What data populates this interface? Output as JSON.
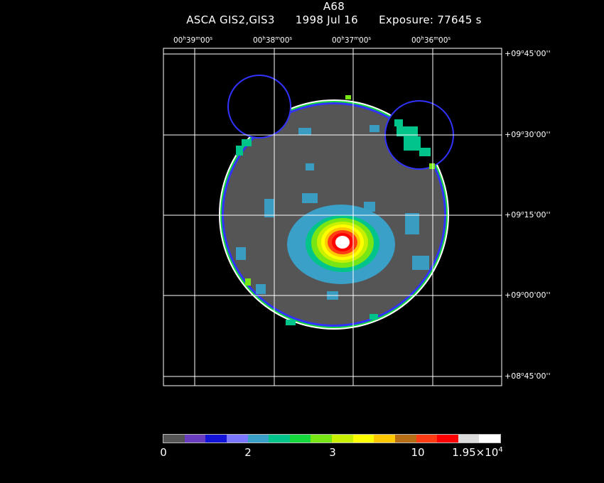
{
  "header": {
    "title": "A68",
    "instrument": "ASCA GIS2,GIS3",
    "date": "1998 Jul 16",
    "exposure": "Exposure: 77645 s"
  },
  "ra_axis": [
    {
      "h": "00",
      "m": "39",
      "s": "00"
    },
    {
      "h": "00",
      "m": "38",
      "s": "00"
    },
    {
      "h": "00",
      "m": "37",
      "s": "00"
    },
    {
      "h": "00",
      "m": "36",
      "s": "00"
    }
  ],
  "dec_axis": [
    {
      "d": "+09",
      "m": "45",
      "s": "00"
    },
    {
      "d": "+09",
      "m": "30",
      "s": "00"
    },
    {
      "d": "+09",
      "m": "15",
      "s": "00"
    },
    {
      "d": "+09",
      "m": "00",
      "s": "00"
    },
    {
      "d": "+08",
      "m": "45",
      "s": "00"
    }
  ],
  "colorbar": {
    "colors": [
      "#555555",
      "#6a3cbf",
      "#1414d8",
      "#7b78ff",
      "#3aa0c8",
      "#00c48a",
      "#14d83c",
      "#78e614",
      "#c8f000",
      "#ffff00",
      "#ffc800",
      "#b86e14",
      "#ff3c14",
      "#ff0000",
      "#dcdcdc",
      "#ffffff"
    ],
    "ticks": [
      {
        "label": "0"
      },
      {
        "label": "2"
      },
      {
        "label": "3"
      },
      {
        "label": "10"
      },
      {
        "label": "1.95×10",
        "sup": "4"
      }
    ]
  },
  "colors": {
    "background": "#000000",
    "field": "#555555",
    "rim": "#3232ff",
    "grid": "#ffffff"
  }
}
